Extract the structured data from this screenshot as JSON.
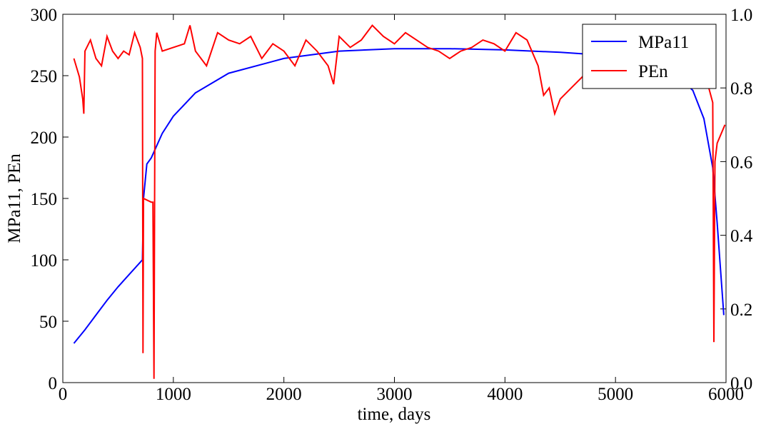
{
  "chart_data": {
    "type": "line",
    "xlabel": "time, days",
    "ylabel": "MPa11, PEn",
    "xlim": [
      0,
      6000
    ],
    "xticks": [
      0,
      1000,
      2000,
      3000,
      4000,
      5000,
      6000
    ],
    "ylim": [
      0,
      300
    ],
    "yticks": [
      0,
      50,
      100,
      150,
      200,
      250,
      300
    ],
    "y2lim": [
      0,
      1
    ],
    "y2ticks": [
      {
        "value": 0,
        "label": "0.0"
      },
      0.2,
      0.4,
      0.6,
      0.8,
      {
        "value": 1,
        "label": "1.0"
      }
    ],
    "legend": "upper right",
    "series": [
      {
        "name": "MPa11",
        "color": "#0000ff",
        "x": [
          100,
          200,
          300,
          400,
          500,
          600,
          700,
          720,
          730,
          760,
          800,
          900,
          1000,
          1200,
          1500,
          2000,
          2500,
          3000,
          3500,
          4000,
          4500,
          5000,
          5300,
          5500,
          5700,
          5800,
          5880,
          5920,
          5980
        ],
        "values": [
          32,
          43,
          55,
          67,
          78,
          88,
          98,
          100,
          150,
          178,
          183,
          203,
          217,
          236,
          252,
          264,
          270,
          272,
          272,
          271,
          269,
          266,
          262,
          255,
          238,
          215,
          175,
          130,
          55
        ]
      },
      {
        "name": "PEn",
        "color": "#ff0000",
        "axis": "y2",
        "x": [
          100,
          150,
          180,
          190,
          200,
          250,
          300,
          350,
          400,
          450,
          500,
          550,
          600,
          650,
          700,
          720,
          725,
          730,
          800,
          815,
          825,
          835,
          850,
          900,
          1000,
          1100,
          1150,
          1200,
          1300,
          1400,
          1500,
          1600,
          1700,
          1800,
          1900,
          2000,
          2100,
          2200,
          2300,
          2400,
          2450,
          2500,
          2600,
          2700,
          2800,
          2900,
          3000,
          3100,
          3200,
          3300,
          3400,
          3500,
          3600,
          3700,
          3800,
          3900,
          4000,
          4100,
          4200,
          4300,
          4350,
          4400,
          4450,
          4500,
          4600,
          4700,
          4800,
          4900,
          5000,
          5200,
          5400,
          5600,
          5800,
          5880,
          5890,
          5900,
          5920,
          5990
        ],
        "values": [
          0.88,
          0.83,
          0.77,
          0.73,
          0.9,
          0.93,
          0.88,
          0.86,
          0.94,
          0.9,
          0.88,
          0.9,
          0.89,
          0.95,
          0.91,
          0.88,
          0.08,
          0.5,
          0.49,
          0.49,
          0.01,
          0.9,
          0.95,
          0.9,
          0.91,
          0.92,
          0.97,
          0.9,
          0.86,
          0.95,
          0.93,
          0.92,
          0.94,
          0.88,
          0.92,
          0.9,
          0.86,
          0.93,
          0.9,
          0.86,
          0.81,
          0.94,
          0.91,
          0.93,
          0.97,
          0.94,
          0.92,
          0.95,
          0.93,
          0.91,
          0.9,
          0.88,
          0.9,
          0.91,
          0.93,
          0.92,
          0.9,
          0.95,
          0.93,
          0.86,
          0.78,
          0.8,
          0.73,
          0.77,
          0.8,
          0.83,
          0.87,
          0.9,
          0.88,
          0.9,
          0.88,
          0.86,
          0.85,
          0.76,
          0.11,
          0.6,
          0.65,
          0.7
        ]
      }
    ]
  }
}
